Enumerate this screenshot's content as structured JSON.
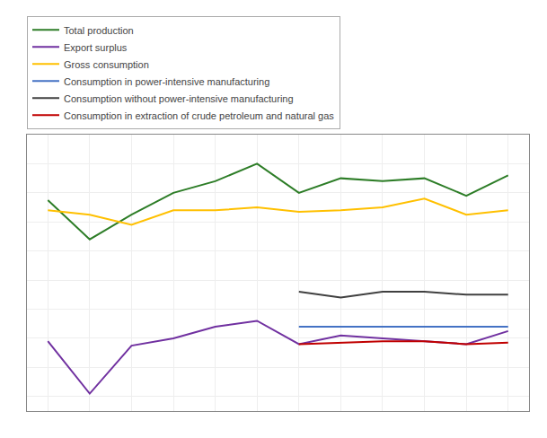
{
  "chart_data": {
    "type": "line",
    "categories": [
      null,
      null,
      null,
      null,
      null,
      null,
      null,
      null,
      null,
      null,
      null,
      null
    ],
    "series": [
      {
        "name": "Total production",
        "color": "#2d7d27",
        "values": [
          115,
          88,
          105,
          120,
          128,
          140,
          120,
          130,
          128,
          130,
          118,
          132
        ]
      },
      {
        "name": "Export surplus",
        "color": "#7030a0",
        "values": [
          18,
          -18,
          15,
          20,
          28,
          32,
          16,
          22,
          20,
          18,
          16,
          25
        ]
      },
      {
        "name": "Gross consumption",
        "color": "#ffc000",
        "values": [
          108,
          105,
          98,
          108,
          108,
          110,
          107,
          108,
          110,
          116,
          105,
          108
        ]
      },
      {
        "name": "Consumption in power-intensive manufacturing",
        "color": "#4472c4",
        "values": [
          null,
          null,
          null,
          null,
          null,
          null,
          28,
          28,
          28,
          28,
          28,
          28
        ]
      },
      {
        "name": "Consumption without power-intensive manufacturing",
        "color": "#404040",
        "values": [
          null,
          null,
          null,
          null,
          null,
          null,
          52,
          48,
          52,
          52,
          50,
          50
        ]
      },
      {
        "name": "Consumption in extraction of crude petroleum and natural gas",
        "color": "#c00000",
        "values": [
          null,
          null,
          null,
          null,
          null,
          null,
          16,
          17,
          18,
          18,
          16,
          17
        ]
      }
    ],
    "ylim": [
      -30,
      160
    ],
    "yticks": [
      -20,
      0,
      20,
      40,
      60,
      80,
      100,
      120,
      140
    ],
    "grid": true,
    "legend": "top",
    "tick_labels": false
  }
}
